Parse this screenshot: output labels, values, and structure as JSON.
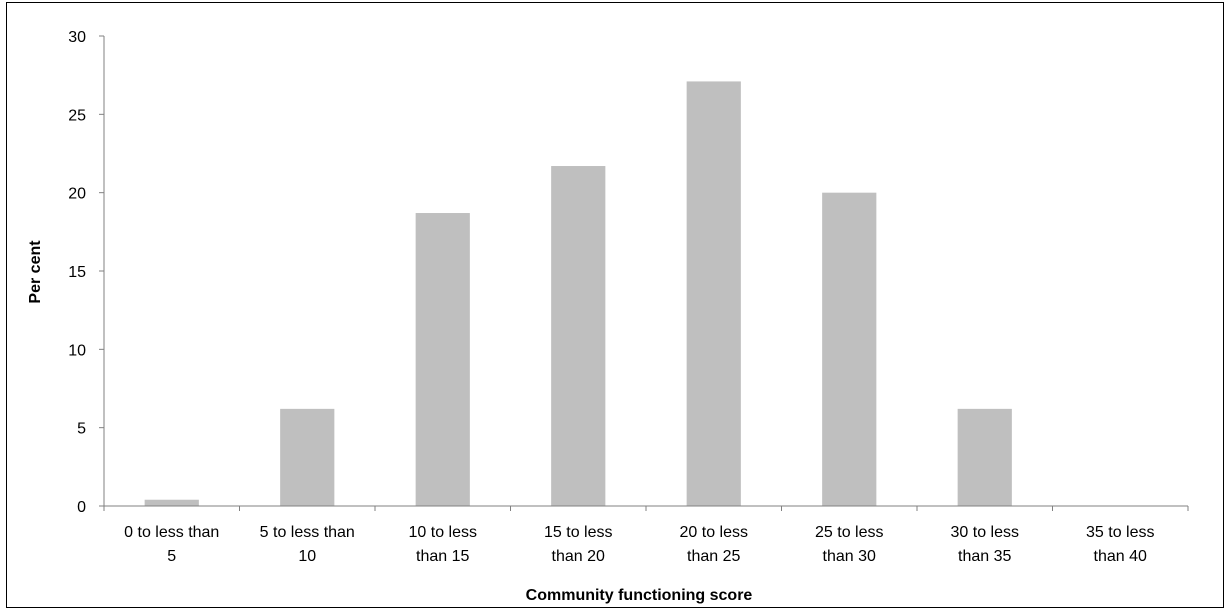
{
  "chart_data": {
    "type": "bar",
    "categories": [
      [
        "0 to less than",
        "5"
      ],
      [
        "5 to less than",
        "10"
      ],
      [
        "10 to less",
        "than 15"
      ],
      [
        "15 to less",
        "than 20"
      ],
      [
        "20 to less",
        "than 25"
      ],
      [
        "25 to less",
        "than 30"
      ],
      [
        "30 to less",
        "than 35"
      ],
      [
        "35 to less",
        "than 40"
      ]
    ],
    "values": [
      0.4,
      6.2,
      18.7,
      21.7,
      27.1,
      20.0,
      6.2,
      0.0
    ],
    "xlabel": "Community functioning score",
    "ylabel": "Per cent",
    "ylim": [
      0,
      30
    ],
    "yticks": [
      0,
      5,
      10,
      15,
      20,
      25,
      30
    ],
    "grid": false,
    "legend": "none",
    "bar_color": "#bfbfbf",
    "axis_color": "#808080"
  }
}
